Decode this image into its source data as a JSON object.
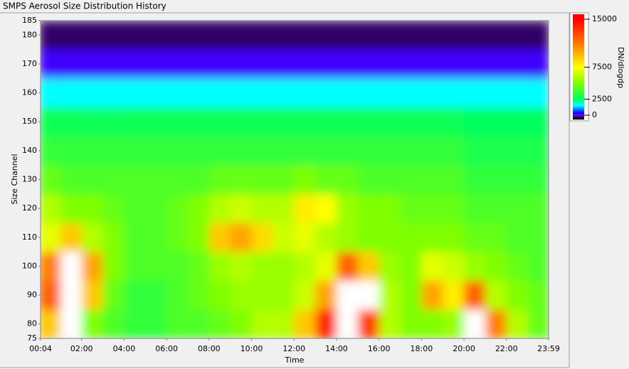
{
  "chart_data": {
    "type": "heatmap",
    "title": "SMPS Aerosol Size Distribution History",
    "x_label": "Time",
    "y_label": "Size Channel",
    "xlim": [
      4,
      1439
    ],
    "xticks": [
      {
        "value": 4,
        "label": "00:04"
      },
      {
        "value": 120,
        "label": "02:00"
      },
      {
        "value": 240,
        "label": "04:00"
      },
      {
        "value": 360,
        "label": "06:00"
      },
      {
        "value": 480,
        "label": "08:00"
      },
      {
        "value": 600,
        "label": "10:00"
      },
      {
        "value": 720,
        "label": "12:00"
      },
      {
        "value": 840,
        "label": "14:00"
      },
      {
        "value": 960,
        "label": "16:00"
      },
      {
        "value": 1080,
        "label": "18:00"
      },
      {
        "value": 1200,
        "label": "20:00"
      },
      {
        "value": 1320,
        "label": "22:00"
      },
      {
        "value": 1439,
        "label": "23:59"
      }
    ],
    "ylim": [
      75,
      185
    ],
    "yticks": [
      75,
      80,
      90,
      100,
      110,
      120,
      130,
      140,
      150,
      160,
      170,
      180,
      185
    ],
    "x": [
      30,
      90,
      150,
      210,
      270,
      330,
      390,
      450,
      510,
      570,
      630,
      690,
      750,
      810,
      870,
      930,
      990,
      1050,
      1110,
      1170,
      1230,
      1290,
      1350,
      1410
    ],
    "y": [
      80,
      90,
      100,
      110,
      120,
      130,
      140,
      150,
      160,
      170,
      180
    ],
    "z": [
      [
        9000,
        16000,
        5000,
        4000,
        3500,
        3500,
        4000,
        4000,
        4500,
        5000,
        6000,
        6000,
        9000,
        14000,
        16000,
        13000,
        6000,
        5000,
        5000,
        5500,
        16000,
        11000,
        6000,
        4500
      ],
      [
        12000,
        16000,
        9000,
        4500,
        3500,
        3500,
        4000,
        4500,
        5000,
        5500,
        5500,
        5500,
        6500,
        10000,
        16000,
        16000,
        6000,
        5000,
        10000,
        8000,
        12000,
        6000,
        5000,
        4500
      ],
      [
        11000,
        16000,
        10000,
        5000,
        4000,
        4000,
        4000,
        4500,
        5500,
        6000,
        5500,
        5500,
        6000,
        7000,
        12000,
        9000,
        5500,
        5000,
        7000,
        6500,
        5500,
        5000,
        4500,
        4000
      ],
      [
        7000,
        9000,
        6000,
        5000,
        4000,
        4000,
        4500,
        5000,
        9000,
        10000,
        8500,
        6500,
        7000,
        6000,
        5500,
        5000,
        5000,
        5000,
        5000,
        5000,
        4500,
        4500,
        4000,
        4000
      ],
      [
        6000,
        5000,
        5000,
        4500,
        4000,
        4000,
        4500,
        5000,
        6000,
        6500,
        6000,
        6000,
        8000,
        7500,
        5500,
        5000,
        5000,
        4500,
        4500,
        4500,
        4000,
        4000,
        4000,
        4000
      ],
      [
        4500,
        4000,
        4000,
        4000,
        4000,
        4000,
        4000,
        4000,
        4500,
        4500,
        4500,
        4500,
        5000,
        4500,
        4500,
        4000,
        4000,
        4000,
        4000,
        4000,
        3500,
        3500,
        3500,
        3500
      ],
      [
        3500,
        3500,
        3500,
        3500,
        3500,
        3500,
        3500,
        3500,
        3500,
        3500,
        3500,
        3500,
        3500,
        3500,
        3500,
        3500,
        3500,
        3500,
        3500,
        3500,
        3000,
        3000,
        3000,
        3000
      ],
      [
        2800,
        2800,
        2700,
        2700,
        2800,
        2800,
        2800,
        2800,
        2800,
        2800,
        2800,
        2800,
        2800,
        2800,
        2800,
        2800,
        2800,
        2800,
        2800,
        2800,
        2600,
        2600,
        2600,
        2600
      ],
      [
        1500,
        1500,
        1500,
        1500,
        1500,
        1500,
        1500,
        1500,
        1500,
        1500,
        1500,
        1500,
        1500,
        1500,
        1500,
        1500,
        1500,
        1500,
        1500,
        1500,
        1500,
        1500,
        1500,
        1500
      ],
      [
        150,
        150,
        150,
        150,
        150,
        150,
        150,
        150,
        150,
        150,
        150,
        150,
        150,
        150,
        150,
        150,
        150,
        150,
        150,
        150,
        150,
        150,
        150,
        150
      ],
      [
        -300,
        -300,
        -300,
        -300,
        -300,
        -300,
        -300,
        -300,
        -300,
        -300,
        -300,
        -300,
        -300,
        -300,
        -300,
        -300,
        -300,
        -300,
        -300,
        -300,
        -300,
        -300,
        -300,
        -300
      ]
    ],
    "colorbar": {
      "label": "DN/dlogdp",
      "lim": [
        0,
        15000
      ],
      "ticks": [
        0,
        2500,
        7500,
        15000
      ],
      "stops": [
        [
          -500,
          "#000000"
        ],
        [
          0,
          "#8000ff"
        ],
        [
          300,
          "#0000ff"
        ],
        [
          1500,
          "#00ffff"
        ],
        [
          2500,
          "#00ff60"
        ],
        [
          5000,
          "#80ff00"
        ],
        [
          7500,
          "#ffff00"
        ],
        [
          11000,
          "#ff8000"
        ],
        [
          15000,
          "#ff0000"
        ]
      ],
      "above_color": "#ffffff"
    }
  }
}
